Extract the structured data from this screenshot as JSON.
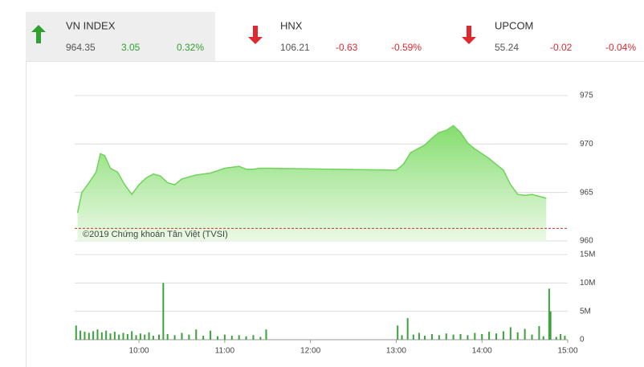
{
  "indices": [
    {
      "name": "VN INDEX",
      "value": "964.35",
      "change": "3.05",
      "percent": "0.32%",
      "color": "#2ea12e"
    },
    {
      "name": "HNX",
      "value": "106.21",
      "change": "-0.63",
      "percent": "-0.59%",
      "color": "#e0282e"
    },
    {
      "name": "UPCOM",
      "value": "55.24",
      "change": "-0.02",
      "percent": "-0.04%",
      "color": "#e0282e"
    }
  ],
  "chart_data": [
    {
      "type": "area",
      "annotation": "©2019 Chứng khoán Tân Việt (TVSI)",
      "x": [
        "09:17",
        "09:20",
        "09:25",
        "09:30",
        "09:33",
        "09:36",
        "09:40",
        "09:45",
        "09:50",
        "09:55",
        "10:00",
        "10:05",
        "10:10",
        "10:15",
        "10:20",
        "10:25",
        "10:30",
        "10:40",
        "10:50",
        "11:00",
        "11:10",
        "11:15",
        "11:20",
        "11:25",
        "11:30",
        "13:00",
        "13:05",
        "13:10",
        "13:15",
        "13:20",
        "13:25",
        "13:30",
        "13:35",
        "13:40",
        "13:45",
        "13:50",
        "13:55",
        "14:00",
        "14:05",
        "14:10",
        "14:15",
        "14:20",
        "14:25",
        "14:30",
        "14:35",
        "14:40",
        "14:45"
      ],
      "values": [
        962.9,
        965.0,
        966.0,
        967.1,
        969.0,
        968.8,
        967.5,
        967.1,
        965.8,
        964.8,
        965.8,
        966.5,
        966.9,
        966.7,
        966.0,
        965.8,
        966.4,
        966.8,
        967.0,
        967.5,
        967.7,
        967.4,
        967.4,
        967.5,
        967.5,
        967.3,
        967.9,
        969.1,
        969.5,
        969.9,
        970.6,
        971.2,
        971.4,
        971.9,
        971.2,
        970.1,
        969.5,
        969.0,
        968.5,
        967.9,
        967.3,
        965.8,
        964.8,
        964.7,
        964.8,
        964.6,
        964.4
      ],
      "color": "#6fd45a",
      "reference_line": 961.3,
      "reference_color": "#c0392b",
      "xlim": [
        "09:15",
        "15:00"
      ],
      "ylim": [
        960,
        975
      ],
      "yticks": [
        960,
        965,
        970,
        975
      ],
      "grid": true
    },
    {
      "type": "bar",
      "x": [
        "09:16",
        "09:19",
        "09:22",
        "09:25",
        "09:28",
        "09:31",
        "09:34",
        "09:37",
        "09:40",
        "09:43",
        "09:46",
        "09:49",
        "09:52",
        "09:55",
        "09:58",
        "10:01",
        "10:04",
        "10:07",
        "10:10",
        "10:14",
        "10:17",
        "10:20",
        "10:25",
        "10:30",
        "10:35",
        "10:40",
        "10:45",
        "10:50",
        "10:55",
        "11:00",
        "11:05",
        "11:10",
        "11:15",
        "11:20",
        "11:25",
        "11:29",
        "13:01",
        "13:04",
        "13:08",
        "13:12",
        "13:16",
        "13:20",
        "13:25",
        "13:30",
        "13:35",
        "13:40",
        "13:45",
        "13:50",
        "13:55",
        "14:00",
        "14:05",
        "14:10",
        "14:15",
        "14:20",
        "14:25",
        "14:30",
        "14:35",
        "14:40",
        "14:43",
        "14:47",
        "14:48",
        "14:52",
        "14:55",
        "14:58"
      ],
      "values": [
        2.5,
        1.6,
        1.4,
        1.2,
        1.5,
        1.8,
        1.3,
        1.6,
        1.1,
        1.4,
        0.9,
        1.2,
        1.0,
        1.5,
        0.8,
        1.1,
        0.9,
        1.3,
        0.7,
        0.9,
        10.0,
        1.0,
        0.8,
        1.2,
        0.9,
        1.8,
        0.7,
        1.6,
        0.6,
        0.9,
        0.7,
        0.8,
        0.6,
        0.8,
        0.5,
        1.8,
        2.5,
        0.8,
        3.8,
        0.9,
        1.2,
        0.7,
        1.0,
        0.8,
        1.1,
        0.9,
        1.0,
        0.8,
        1.2,
        1.0,
        1.4,
        1.1,
        1.5,
        2.2,
        1.3,
        1.9,
        0.9,
        2.4,
        0.6,
        9.0,
        5.0,
        0.5,
        1.0,
        0.7
      ],
      "color": "#3aa23a",
      "xlim": [
        "09:15",
        "15:00"
      ],
      "xticks": [
        "10:00",
        "11:00",
        "12:00",
        "13:00",
        "14:00",
        "15:00"
      ],
      "ylim": [
        0,
        15
      ],
      "yticks": [
        0,
        {
          "value": 5,
          "label": "5M"
        },
        {
          "value": 10,
          "label": "10M"
        },
        {
          "value": 15,
          "label": "15M"
        }
      ],
      "grid": true
    }
  ]
}
